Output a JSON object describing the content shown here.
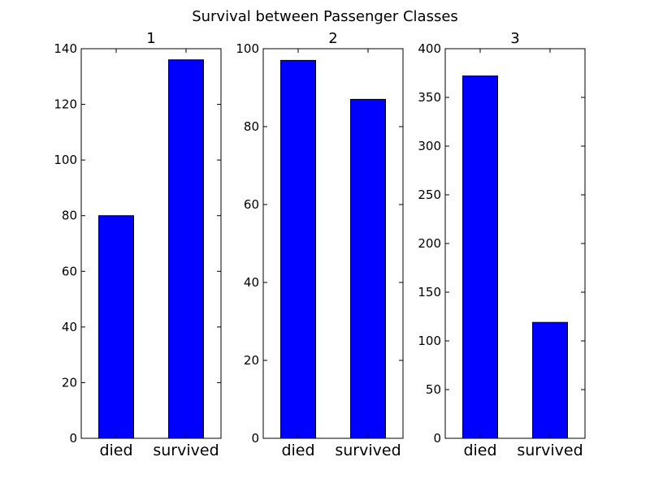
{
  "chart_data": {
    "type": "bar",
    "title": "Survival between Passenger Classes",
    "bar_color": "#0000ff",
    "subplots": [
      {
        "title": "1",
        "categories": [
          "died",
          "survived"
        ],
        "values": [
          80,
          136
        ],
        "ylim": [
          0,
          140
        ],
        "yticks": [
          0,
          20,
          40,
          60,
          80,
          100,
          120,
          140
        ]
      },
      {
        "title": "2",
        "categories": [
          "died",
          "survived"
        ],
        "values": [
          97,
          87
        ],
        "ylim": [
          0,
          100
        ],
        "yticks": [
          0,
          20,
          40,
          60,
          80,
          100
        ]
      },
      {
        "title": "3",
        "categories": [
          "died",
          "survived"
        ],
        "values": [
          372,
          119
        ],
        "ylim": [
          0,
          400
        ],
        "yticks": [
          0,
          50,
          100,
          150,
          200,
          250,
          300,
          350,
          400
        ]
      }
    ]
  }
}
